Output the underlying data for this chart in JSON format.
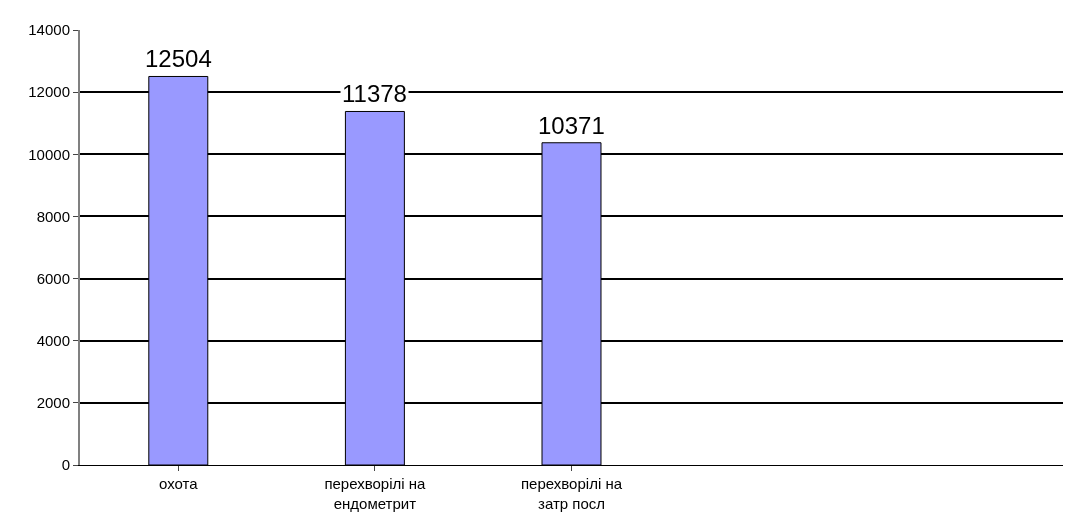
{
  "chart_data": {
    "type": "bar",
    "categories": [
      "охота",
      "перехворілі на ендометрит",
      "перехворілі на затр посл",
      null,
      null
    ],
    "values": [
      12504,
      11378,
      10371,
      null,
      null
    ],
    "color": "#9999ff",
    "data_labels": true,
    "ylim": [
      0,
      14000
    ],
    "yticks": [
      0,
      2000,
      4000,
      6000,
      8000,
      10000,
      12000,
      14000
    ],
    "grid": "y",
    "legend": false
  }
}
